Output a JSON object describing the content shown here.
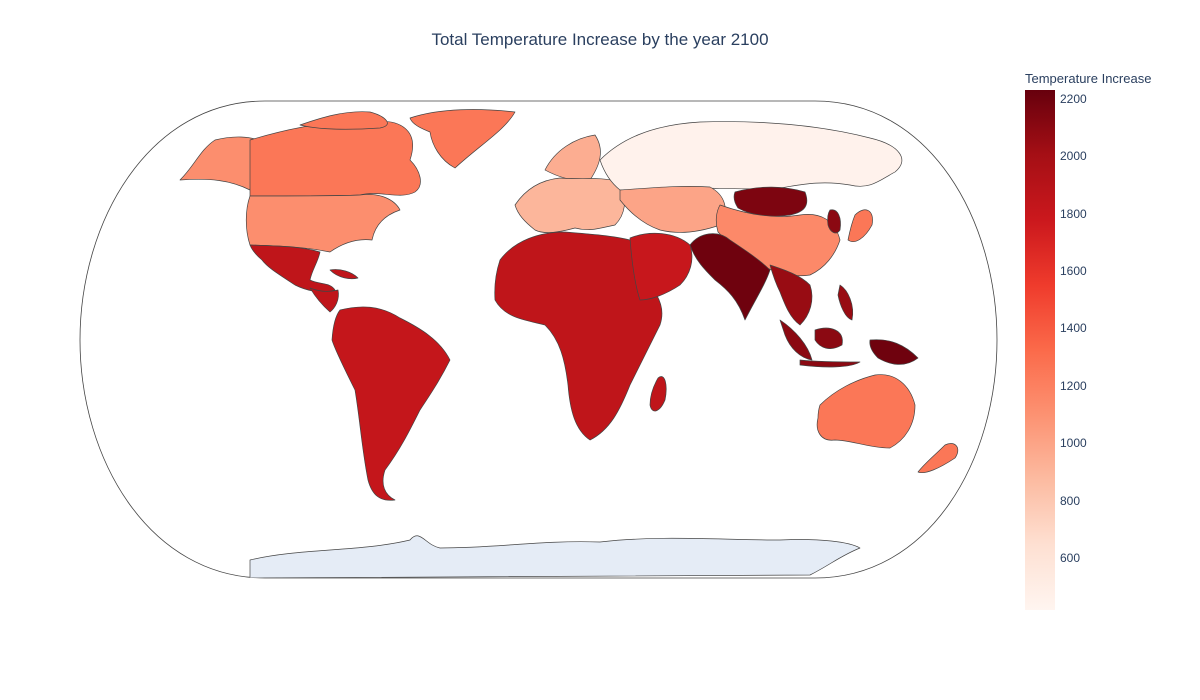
{
  "chart_data": {
    "type": "choropleth",
    "title": "Total Temperature Increase by the year 2100",
    "colorbar": {
      "title": "Temperature Increase",
      "min": 420,
      "max": 2230,
      "ticks": [
        600,
        800,
        1000,
        1200,
        1400,
        1600,
        1800,
        2000,
        2200
      ]
    },
    "colorscale": {
      "name": "Reds",
      "stops": [
        "#fff5f0",
        "#fee0d2",
        "#fcbba1",
        "#fc9272",
        "#fb6a4a",
        "#ef3b2c",
        "#cb181d",
        "#a50f15",
        "#67000d"
      ]
    },
    "regions": [
      {
        "name": "Canada",
        "value": 1250
      },
      {
        "name": "USA",
        "value": 1120
      },
      {
        "name": "Alaska",
        "value": 1120
      },
      {
        "name": "Greenland",
        "value": 1250
      },
      {
        "name": "Mexico",
        "value": 1850
      },
      {
        "name": "Central America",
        "value": 1850
      },
      {
        "name": "Caribbean",
        "value": 1850
      },
      {
        "name": "South America",
        "value": 1820
      },
      {
        "name": "Africa",
        "value": 1850
      },
      {
        "name": "Madagascar",
        "value": 1850
      },
      {
        "name": "Arabian Peninsula",
        "value": 1800
      },
      {
        "name": "Europe",
        "value": 900
      },
      {
        "name": "Scandinavia",
        "value": 950
      },
      {
        "name": "Russia",
        "value": 450
      },
      {
        "name": "Central Asia",
        "value": 1000
      },
      {
        "name": "China",
        "value": 1150
      },
      {
        "name": "Mongolia",
        "value": 2150
      },
      {
        "name": "Japan",
        "value": 1250
      },
      {
        "name": "Korea",
        "value": 2100
      },
      {
        "name": "India",
        "value": 2200
      },
      {
        "name": "Southeast Asia",
        "value": 2050
      },
      {
        "name": "Indonesia",
        "value": 2100
      },
      {
        "name": "New Guinea",
        "value": 2200
      },
      {
        "name": "Australia",
        "value": 1250
      },
      {
        "name": "New Zealand",
        "value": 1250
      }
    ],
    "no_data_color": "#e5ecf6"
  }
}
